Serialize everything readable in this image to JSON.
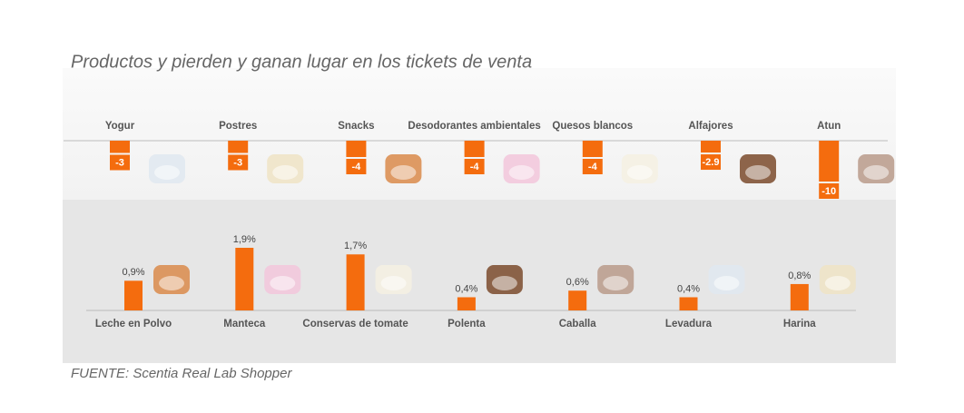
{
  "title": "Productos y pierden y ganan lugar en los tickets de venta",
  "source": "FUENTE: Scentia Real Lab Shopper",
  "chart_data": [
    {
      "type": "bar",
      "color": "#f46c0e",
      "categories": [
        "Yogur",
        "Postres",
        "Snacks",
        "Desodorantes ambientales",
        "Quesos blancos",
        "Alfajores",
        "Atun"
      ],
      "values": [
        -3,
        -3,
        -4,
        -4,
        -4,
        -2.9,
        -10
      ]
    },
    {
      "type": "bar",
      "color": "#f46c0e",
      "categories": [
        "Leche en Polvo",
        "Manteca",
        "Conservas de tomate",
        "Polenta",
        "Caballa",
        "Levadura",
        "Harina"
      ],
      "values": [
        0.9,
        1.9,
        1.7,
        0.4,
        0.6,
        0.4,
        0.8
      ],
      "value_labels": [
        "0,9%",
        "1,9%",
        "1,7%",
        "0,4%",
        "0,6%",
        "0,4%",
        "0,8%"
      ]
    }
  ]
}
